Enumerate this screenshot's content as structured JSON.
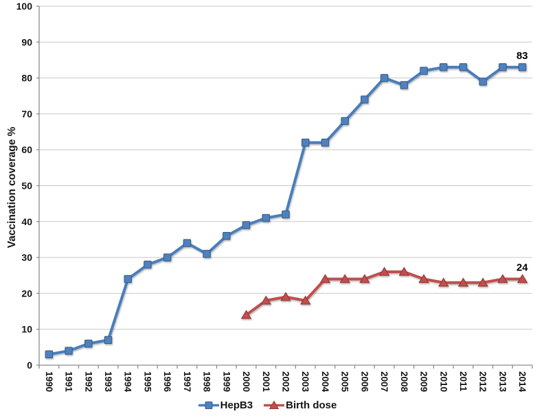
{
  "chart_data": {
    "type": "line",
    "ylabel": "Vaccination coverage %",
    "xlabel": "",
    "ylim": [
      0,
      100
    ],
    "yticks": [
      0,
      10,
      20,
      30,
      40,
      50,
      60,
      70,
      80,
      90,
      100
    ],
    "grid": true,
    "legend_position": "bottom",
    "categories": [
      "1990",
      "1991",
      "1992",
      "1993",
      "1994",
      "1995",
      "1996",
      "1997",
      "1998",
      "1999",
      "2000",
      "2001",
      "2002",
      "2003",
      "2004",
      "2005",
      "2006",
      "2007",
      "2008",
      "2009",
      "2010",
      "2011",
      "2012",
      "2013",
      "2014"
    ],
    "series": [
      {
        "name": "HepB3",
        "marker": "square",
        "first_year": "1990",
        "values": [
          3,
          4,
          6,
          7,
          24,
          28,
          30,
          34,
          31,
          36,
          39,
          41,
          42,
          62,
          62,
          68,
          74,
          80,
          78,
          82,
          83,
          83,
          79,
          83,
          83
        ],
        "end_label": "83",
        "line_color": "#4a7ebb",
        "fill_color": "#4f81bd",
        "border_color": "#385d8a"
      },
      {
        "name": "Birth dose",
        "marker": "triangle",
        "first_year": "2000",
        "values": [
          14,
          18,
          19,
          18,
          24,
          24,
          24,
          26,
          26,
          24,
          23,
          23,
          23,
          24,
          24
        ],
        "end_label": "24",
        "line_color": "#c0504d",
        "fill_color": "#c0504d",
        "border_color": "#943634"
      }
    ],
    "colors": {
      "grid": "#c8c8c8",
      "axis": "#8c8c8c",
      "text": "#141414",
      "background": "#ffffff"
    }
  }
}
